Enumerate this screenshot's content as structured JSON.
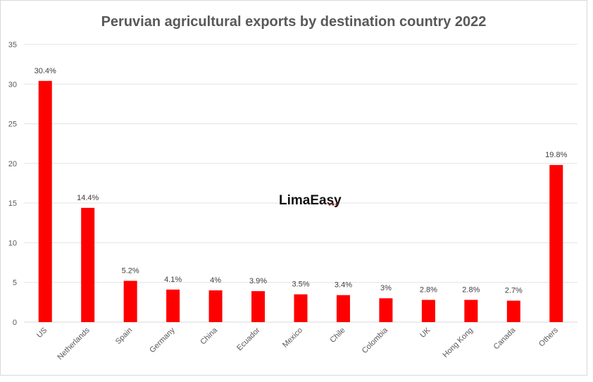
{
  "chart_data": {
    "type": "bar",
    "title": "Peruvian agricultural exports by destination country 2022",
    "categories": [
      "US",
      "Netherlands",
      "Spain",
      "Germany",
      "China",
      "Ecuador",
      "Mexico",
      "Chile",
      "Colombia",
      "UK",
      "Hong Kong",
      "Canada",
      "Others"
    ],
    "values": [
      30.4,
      14.4,
      5.2,
      4.1,
      4.0,
      3.9,
      3.5,
      3.4,
      3.0,
      2.8,
      2.8,
      2.7,
      19.8
    ],
    "data_labels": [
      "30.4%",
      "14.4%",
      "5.2%",
      "4.1%",
      "4%",
      "3.9%",
      "3.5%",
      "3.4%",
      "3%",
      "2.8%",
      "2.8%",
      "2.7%",
      "19.8%"
    ],
    "ylim": [
      0,
      35
    ],
    "yticks": [
      0,
      5,
      10,
      15,
      20,
      25,
      30,
      35
    ],
    "grid": true,
    "bar_color": "#ff0000",
    "watermark": "LimaEasy"
  }
}
